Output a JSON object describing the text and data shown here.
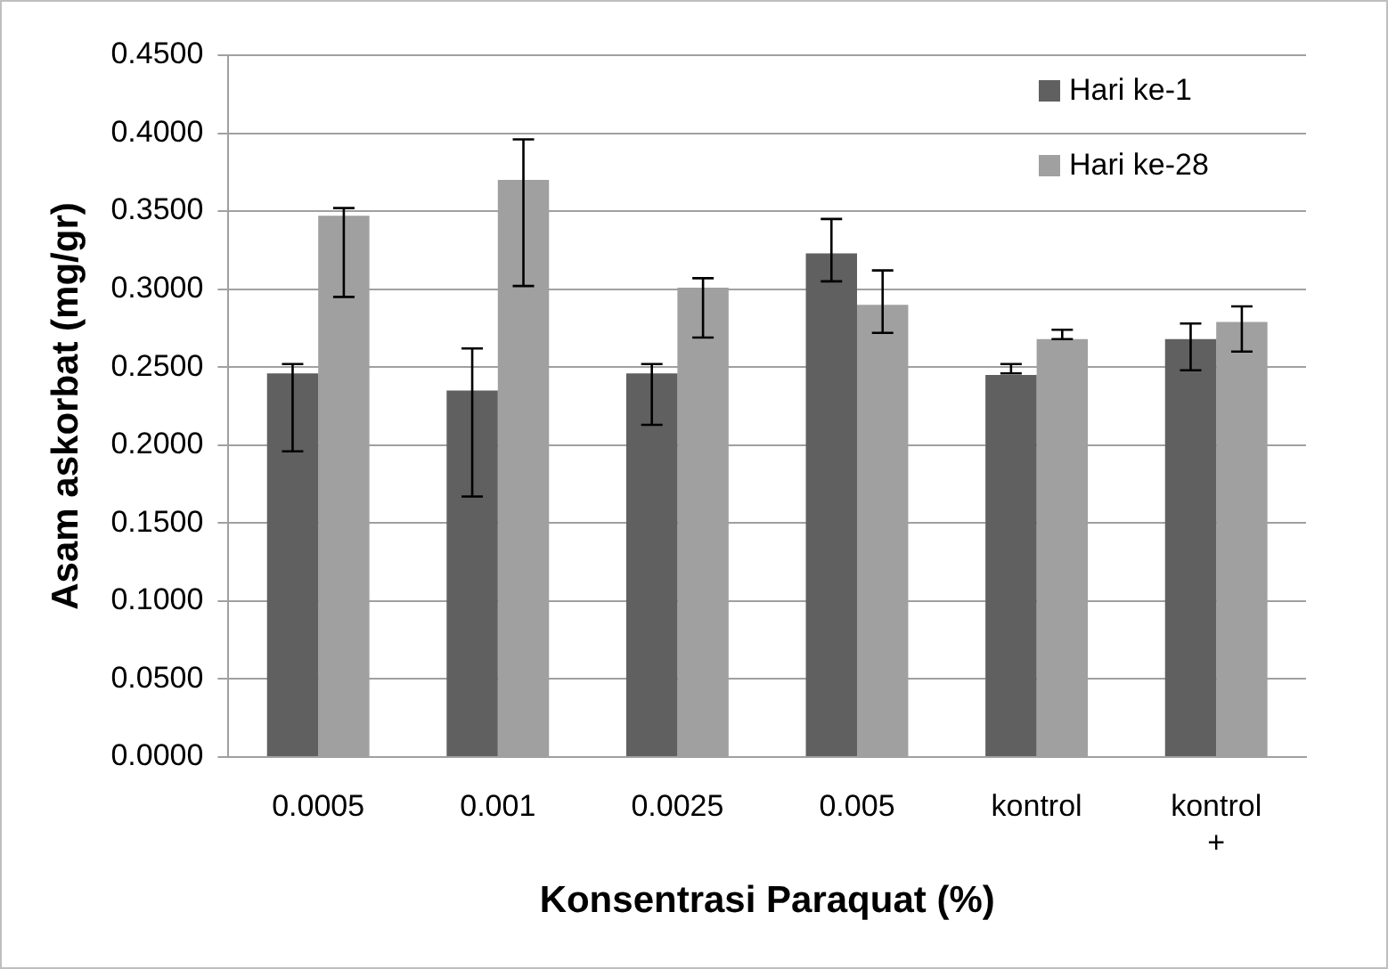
{
  "chart_data": {
    "type": "bar",
    "xlabel": "Konsentrasi Paraquat (%)",
    "ylabel": "Asam askorbat (mg/gr)",
    "categories": [
      "0.0005",
      "0.001",
      "0.0025",
      "0.005",
      "kontrol",
      "kontrol +"
    ],
    "series": [
      {
        "name": "Hari ke-1",
        "color": "#606060",
        "values": [
          0.246,
          0.235,
          0.246,
          0.323,
          0.245,
          0.268
        ],
        "errors": [
          [
            0.196,
            0.252
          ],
          [
            0.167,
            0.262
          ],
          [
            0.213,
            0.252
          ],
          [
            0.305,
            0.345
          ],
          [
            0.246,
            0.252
          ],
          [
            0.248,
            0.278
          ]
        ]
      },
      {
        "name": "Hari ke-28",
        "color": "#a0a0a0",
        "values": [
          0.347,
          0.37,
          0.301,
          0.29,
          0.268,
          0.279
        ],
        "errors": [
          [
            0.295,
            0.352
          ],
          [
            0.302,
            0.396
          ],
          [
            0.269,
            0.307
          ],
          [
            0.272,
            0.312
          ],
          [
            0.268,
            0.274
          ],
          [
            0.26,
            0.289
          ]
        ]
      }
    ],
    "ylim": [
      0,
      0.45
    ],
    "yticks": [
      {
        "value": 0,
        "label": "0.0000"
      },
      {
        "value": 0.05,
        "label": "0.0500"
      },
      {
        "value": 0.1,
        "label": "0.1000"
      },
      {
        "value": 0.15,
        "label": "0.1500"
      },
      {
        "value": 0.2,
        "label": "0.2000"
      },
      {
        "value": 0.25,
        "label": "0.2500"
      },
      {
        "value": 0.3,
        "label": "0.3000"
      },
      {
        "value": 0.35,
        "label": "0.3500"
      },
      {
        "value": 0.4,
        "label": "0.4000"
      },
      {
        "value": 0.45,
        "label": "0.4500"
      }
    ],
    "grid": "y",
    "legend": "top right"
  }
}
